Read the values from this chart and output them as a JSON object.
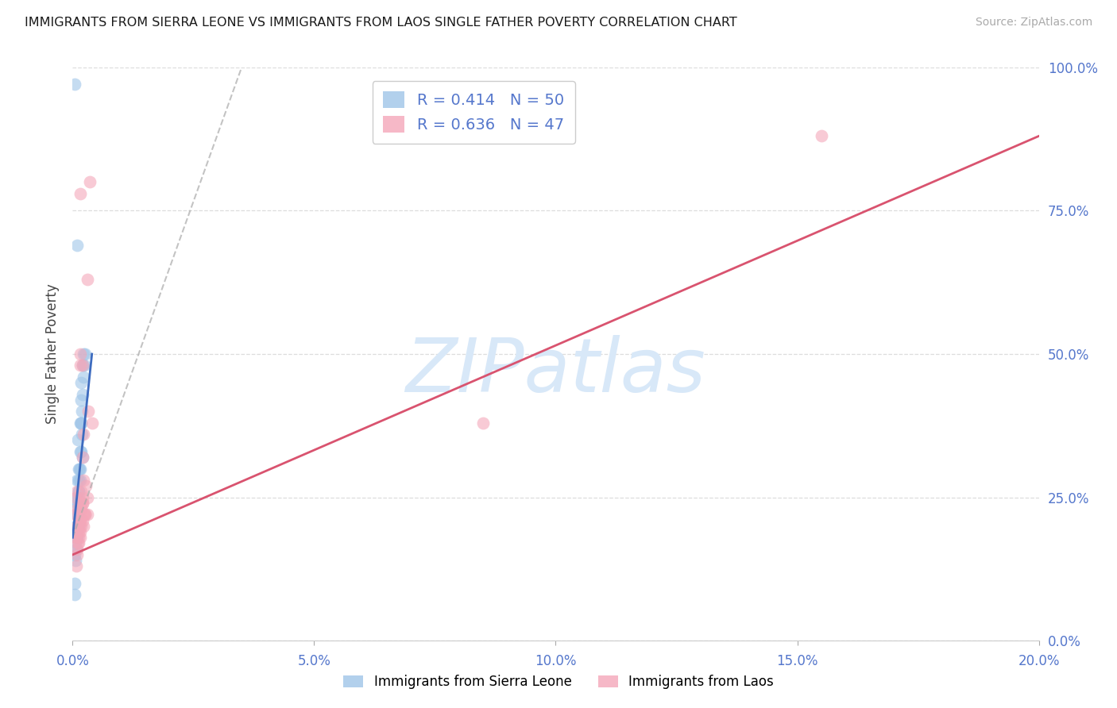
{
  "title": "IMMIGRANTS FROM SIERRA LEONE VS IMMIGRANTS FROM LAOS SINGLE FATHER POVERTY CORRELATION CHART",
  "source": "Source: ZipAtlas.com",
  "ylabel_left": "Single Father Poverty",
  "legend_label1": "Immigrants from Sierra Leone",
  "legend_label2": "Immigrants from Laos",
  "R1": 0.414,
  "N1": 50,
  "R2": 0.636,
  "N2": 47,
  "color_sierra": "#9fc5e8",
  "color_laos": "#f4a7b9",
  "trendline_sierra": "#3d6bbf",
  "trendline_laos": "#d9536f",
  "watermark": "ZIPatlas",
  "watermark_color": "#d8e8f8",
  "xlim": [
    0.0,
    0.2
  ],
  "ylim": [
    0.0,
    1.0
  ],
  "xticks": [
    0.0,
    0.05,
    0.1,
    0.15,
    0.2
  ],
  "yticks": [
    0.0,
    0.25,
    0.5,
    0.75,
    1.0
  ],
  "ytick_labels_right": [
    "0.0%",
    "25.0%",
    "50.0%",
    "75.0%",
    "100.0%"
  ],
  "xtick_labels": [
    "0.0%",
    "5.0%",
    "10.0%",
    "15.0%",
    "20.0%"
  ],
  "axis_color": "#5577cc",
  "title_color": "#1a1a1a",
  "source_color": "#aaaaaa",
  "grid_color": "#dddddd",
  "sierra_x": [
    0.0005,
    0.001,
    0.0008,
    0.0012,
    0.0006,
    0.001,
    0.0009,
    0.0007,
    0.0015,
    0.0011,
    0.0013,
    0.0008,
    0.0016,
    0.001,
    0.0007,
    0.0012,
    0.0018,
    0.002,
    0.0009,
    0.0006,
    0.0014,
    0.0017,
    0.0013,
    0.0008,
    0.0019,
    0.0022,
    0.0012,
    0.0007,
    0.0015,
    0.0021,
    0.0005,
    0.0025,
    0.002,
    0.0018,
    0.0011,
    0.0006,
    0.0007,
    0.0013,
    0.0019,
    0.0023,
    0.001,
    0.0004,
    0.0016,
    0.0024,
    0.001,
    0.0006,
    0.0017,
    0.0012,
    0.0005,
    0.0018
  ],
  "sierra_y": [
    0.97,
    0.69,
    0.25,
    0.2,
    0.23,
    0.28,
    0.18,
    0.22,
    0.3,
    0.35,
    0.28,
    0.19,
    0.38,
    0.25,
    0.2,
    0.26,
    0.42,
    0.48,
    0.22,
    0.17,
    0.3,
    0.45,
    0.3,
    0.2,
    0.4,
    0.5,
    0.25,
    0.18,
    0.28,
    0.32,
    0.15,
    0.5,
    0.43,
    0.38,
    0.24,
    0.14,
    0.16,
    0.22,
    0.36,
    0.46,
    0.2,
    0.1,
    0.33,
    0.48,
    0.24,
    0.2,
    0.38,
    0.26,
    0.08,
    0.33
  ],
  "laos_x": [
    0.0005,
    0.001,
    0.0015,
    0.0006,
    0.0012,
    0.0018,
    0.002,
    0.0025,
    0.001,
    0.0015,
    0.0006,
    0.002,
    0.0016,
    0.001,
    0.0022,
    0.0021,
    0.0014,
    0.002,
    0.001,
    0.0015,
    0.0028,
    0.0022,
    0.003,
    0.0035,
    0.0017,
    0.001,
    0.004,
    0.0032,
    0.0022,
    0.003,
    0.0008,
    0.0012,
    0.0009,
    0.0011,
    0.0018,
    0.0014,
    0.0016,
    0.0013,
    0.0017,
    0.002,
    0.0023,
    0.0015,
    0.0025,
    0.003,
    0.002,
    0.085,
    0.155
  ],
  "laos_y": [
    0.22,
    0.2,
    0.78,
    0.25,
    0.18,
    0.26,
    0.24,
    0.22,
    0.19,
    0.48,
    0.18,
    0.32,
    0.5,
    0.26,
    0.28,
    0.24,
    0.21,
    0.48,
    0.23,
    0.19,
    0.27,
    0.22,
    0.63,
    0.8,
    0.2,
    0.16,
    0.38,
    0.4,
    0.36,
    0.22,
    0.13,
    0.17,
    0.15,
    0.17,
    0.24,
    0.2,
    0.21,
    0.19,
    0.23,
    0.25,
    0.2,
    0.18,
    0.22,
    0.25,
    0.21,
    0.38,
    0.88
  ],
  "sierra_trend_x": [
    0.0,
    0.004
  ],
  "sierra_trend_y": [
    0.18,
    0.5
  ],
  "laos_trend_x": [
    0.0,
    0.2
  ],
  "laos_trend_y": [
    0.15,
    0.88
  ]
}
